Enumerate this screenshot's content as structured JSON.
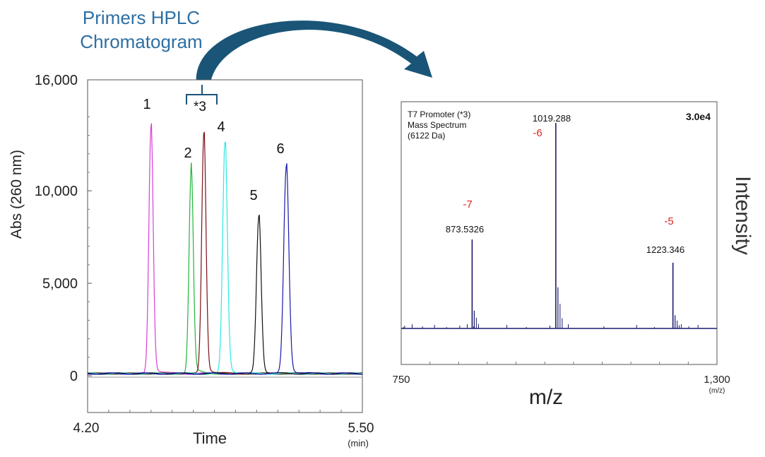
{
  "callout": {
    "title_line1": "Primers HPLC",
    "title_line2": "Chromatogram",
    "title_color": "#2e6fa3",
    "arrow_color": "#1a5577"
  },
  "chart_data": [
    {
      "type": "line",
      "x_ticks": [
        "4.20",
        "5.50"
      ],
      "x_unit": "(min)",
      "xlabel": "Time",
      "ylabel": "Abs (260 nm)",
      "y_ticks": [
        {
          "label": "16,000",
          "value": 16000
        },
        {
          "label": "10,000",
          "value": 10000
        },
        {
          "label": "5,000",
          "value": 5000
        },
        {
          "label": "0",
          "value": 0
        }
      ],
      "xlim": [
        4.2,
        5.5
      ],
      "ylim": [
        -2000,
        16000
      ],
      "grid": false,
      "bracket_label": "*3",
      "baseline": 0,
      "series": [
        {
          "label": "1",
          "color": "#d63fd6",
          "center": 4.5,
          "height": 13400,
          "width": 0.01
        },
        {
          "label": "2",
          "color": "#22b53a",
          "center": 4.69,
          "height": 11000,
          "width": 0.01
        },
        {
          "label": "*3",
          "color": "#7a1018",
          "center": 4.75,
          "height": 13000,
          "width": 0.01
        },
        {
          "label": "4",
          "color": "#2ee6e6",
          "center": 4.85,
          "height": 12500,
          "width": 0.011
        },
        {
          "label": "5",
          "color": "#111111",
          "center": 5.01,
          "height": 8500,
          "width": 0.011
        },
        {
          "label": "6",
          "color": "#1a1aa8",
          "center": 5.14,
          "height": 11200,
          "width": 0.012
        }
      ]
    },
    {
      "type": "bar",
      "title_lines": [
        "T7 Promoter (*3)",
        "Mass Spectrum",
        "(6122 Da)"
      ],
      "scale_label": "3.0e4",
      "xlabel": "m/z",
      "ylabel": "Intensity",
      "x_ticks": [
        "750",
        "1,300"
      ],
      "x_unit": "(m/z)",
      "xlim": [
        750,
        1300
      ],
      "ylim": [
        0,
        1
      ],
      "color": "#1c1c6e",
      "peaks": [
        {
          "mz": 873.5326,
          "rel": 0.42,
          "label": "873.5326",
          "charge": "-7"
        },
        {
          "mz": 1019.288,
          "rel": 0.97,
          "label": "1019.288",
          "charge": "-6"
        },
        {
          "mz": 1223.346,
          "rel": 0.31,
          "label": "1223.346",
          "charge": "-5"
        }
      ],
      "charge_color": "#e0251f"
    }
  ]
}
